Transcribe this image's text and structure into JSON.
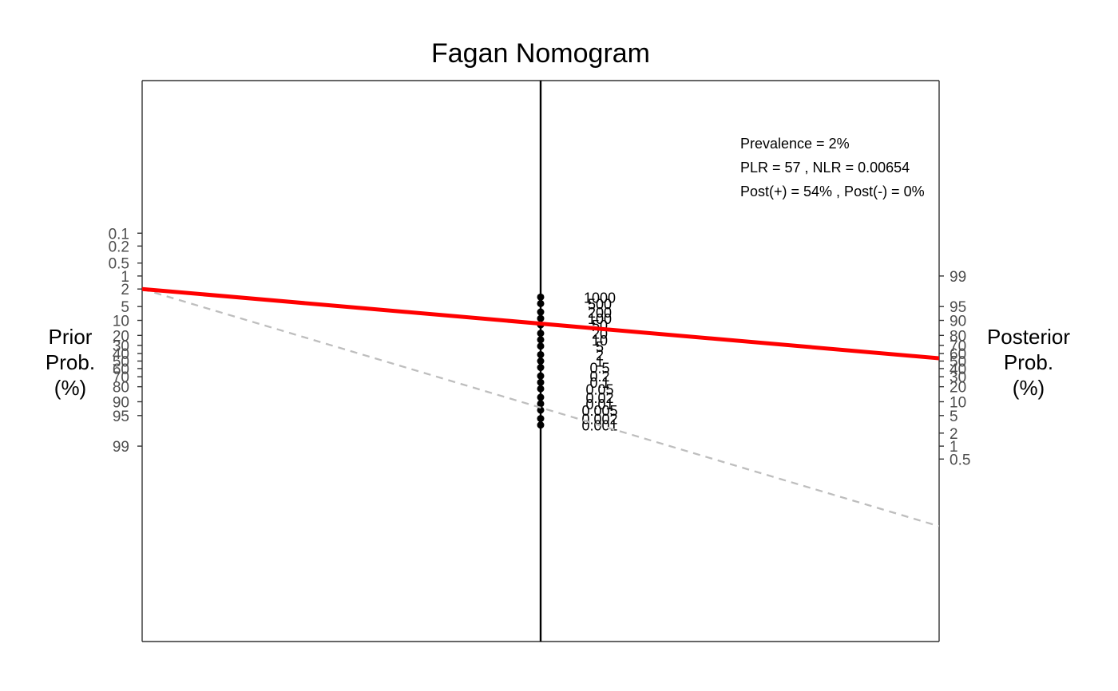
{
  "chart_data": {
    "type": "line",
    "title": "Fagan Nomogram",
    "left_axis": {
      "label_lines": [
        "Prior",
        "Prob.",
        "(%)"
      ],
      "ticks": [
        0.1,
        0.2,
        0.5,
        1,
        2,
        5,
        10,
        20,
        30,
        40,
        50,
        60,
        70,
        80,
        90,
        95,
        99
      ],
      "tick_labels": [
        "0.1",
        "0.2",
        "0.5",
        "1",
        "2",
        "5",
        "10",
        "20",
        "30",
        "40",
        "50",
        "60",
        "70",
        "80",
        "90",
        "95",
        "99"
      ]
    },
    "right_axis": {
      "label_lines": [
        "Posterior",
        "Prob.",
        "(%)"
      ],
      "ticks": [
        99,
        95,
        90,
        80,
        70,
        60,
        50,
        40,
        30,
        20,
        10,
        5,
        2,
        1,
        0.5
      ],
      "tick_labels": [
        "99",
        "95",
        "90",
        "80",
        "70",
        "60",
        "50",
        "40",
        "30",
        "20",
        "10",
        "5",
        "2",
        "1",
        "0.5"
      ]
    },
    "likelihood_ratio_axis": {
      "values": [
        1000,
        500,
        200,
        100,
        50,
        20,
        10,
        5,
        2,
        1,
        0.5,
        0.2,
        0.1,
        0.05,
        0.02,
        0.01,
        0.005,
        0.002,
        0.001
      ],
      "labels": [
        "1000",
        "500",
        "200",
        "100",
        "50",
        "20",
        "10",
        "5",
        "2",
        "1",
        "0.5",
        "0.2",
        "0.1",
        "0.05",
        "0.02",
        "0.01",
        "0.005",
        "0.002",
        "0.001"
      ]
    },
    "series": [
      {
        "prior": 2,
        "lr": 57,
        "posterior": 54,
        "color": "#ff0000",
        "style": "solid"
      },
      {
        "prior": 2,
        "lr": 0.00654,
        "posterior": 0,
        "color": "#bebebe",
        "style": "dashed"
      }
    ],
    "annotations": [
      "Prevalence = 2%",
      "PLR = 57 , NLR = 0.00654",
      "Post(+) = 54% , Post(-) = 0%"
    ],
    "grid": false
  }
}
